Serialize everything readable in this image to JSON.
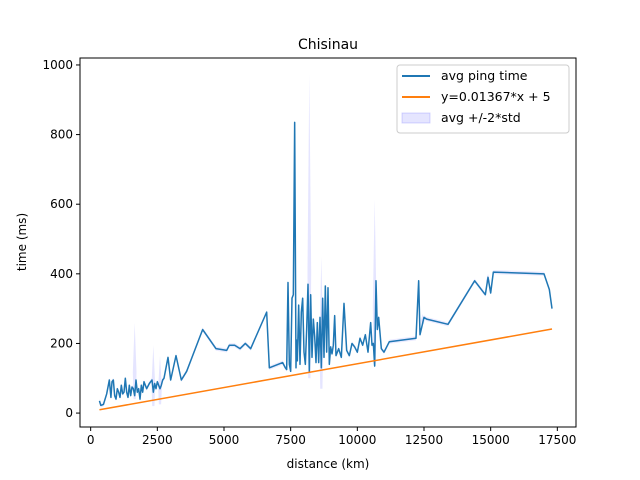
{
  "chart_data": {
    "type": "line",
    "title": "Chisinau",
    "xlabel": "distance (km)",
    "ylabel": "time (ms)",
    "xlim": [
      -400,
      18200
    ],
    "ylim": [
      -40,
      1020
    ],
    "xticks": [
      0,
      2500,
      5000,
      7500,
      10000,
      12500,
      15000,
      17500
    ],
    "yticks": [
      0,
      200,
      400,
      600,
      800,
      1000
    ],
    "grid": false,
    "legend_position": "top-right",
    "colors": {
      "avg": "#1f77b4",
      "fit": "#ff7f0e",
      "band": "#0000ff"
    },
    "series": [
      {
        "name": "avg ping time",
        "kind": "line",
        "x": [
          330,
          380,
          480,
          600,
          700,
          760,
          800,
          850,
          900,
          950,
          1000,
          1050,
          1100,
          1150,
          1200,
          1250,
          1300,
          1350,
          1400,
          1450,
          1500,
          1550,
          1600,
          1650,
          1700,
          1750,
          1800,
          1850,
          1900,
          1950,
          2000,
          2100,
          2200,
          2300,
          2350,
          2400,
          2450,
          2500,
          2550,
          2600,
          2650,
          2700,
          2750,
          2800,
          2900,
          3000,
          3200,
          3400,
          3600,
          3800,
          4200,
          4700,
          5100,
          5200,
          5300,
          5400,
          5600,
          5800,
          6000,
          6600,
          6700,
          7200,
          7300,
          7350,
          7400,
          7450,
          7500,
          7550,
          7600,
          7650,
          7700,
          7720,
          7750,
          7800,
          7850,
          7900,
          7950,
          8000,
          8050,
          8100,
          8150,
          8200,
          8250,
          8300,
          8350,
          8400,
          8450,
          8500,
          8550,
          8600,
          8650,
          8700,
          8750,
          8800,
          8850,
          8900,
          8950,
          9000,
          9050,
          9100,
          9150,
          9200,
          9300,
          9400,
          9500,
          9600,
          9700,
          9800,
          9900,
          10000,
          10100,
          10200,
          10300,
          10400,
          10500,
          10550,
          10600,
          10650,
          10700,
          10750,
          10800,
          10900,
          11000,
          11200,
          12200,
          12300,
          12350,
          12500,
          12600,
          13400,
          14400,
          14800,
          14900,
          15000,
          15100,
          17000,
          17200,
          17300
        ],
        "y": [
          35,
          22,
          25,
          55,
          95,
          45,
          90,
          95,
          50,
          40,
          70,
          60,
          45,
          80,
          55,
          60,
          100,
          60,
          45,
          80,
          50,
          75,
          70,
          50,
          95,
          60,
          70,
          40,
          80,
          60,
          90,
          70,
          85,
          95,
          60,
          85,
          70,
          90,
          80,
          70,
          80,
          95,
          100,
          120,
          160,
          95,
          165,
          95,
          120,
          160,
          240,
          185,
          180,
          195,
          195,
          195,
          185,
          200,
          185,
          290,
          130,
          145,
          130,
          125,
          375,
          140,
          120,
          330,
          340,
          835,
          130,
          210,
          150,
          310,
          140,
          290,
          330,
          175,
          140,
          240,
          370,
          120,
          340,
          160,
          270,
          220,
          145,
          260,
          145,
          275,
          130,
          330,
          160,
          365,
          175,
          360,
          140,
          190,
          170,
          195,
          280,
          165,
          185,
          160,
          315,
          180,
          165,
          200,
          190,
          175,
          215,
          195,
          225,
          175,
          260,
          195,
          200,
          135,
          380,
          240,
          275,
          185,
          175,
          205,
          215,
          380,
          225,
          275,
          270,
          255,
          380,
          340,
          390,
          345,
          405,
          400,
          355,
          300
        ]
      },
      {
        "name": "y=0.01367*x + 5",
        "kind": "line",
        "x": [
          330,
          17300
        ],
        "y": [
          9.5,
          241.5
        ]
      },
      {
        "name": "avg +/-2*std",
        "kind": "band",
        "spikes": [
          {
            "x": 1650,
            "upper": 260,
            "lower": 40
          },
          {
            "x": 2350,
            "upper": 195,
            "lower": 20
          },
          {
            "x": 2600,
            "upper": 165,
            "lower": 25
          },
          {
            "x": 8200,
            "upper": 975,
            "lower": 100
          },
          {
            "x": 8650,
            "upper": 450,
            "lower": 70
          },
          {
            "x": 10650,
            "upper": 615,
            "lower": 140
          },
          {
            "x": 12450,
            "upper": 285,
            "lower": 255
          },
          {
            "x": 14900,
            "upper": 400,
            "lower": 370
          }
        ]
      }
    ]
  }
}
